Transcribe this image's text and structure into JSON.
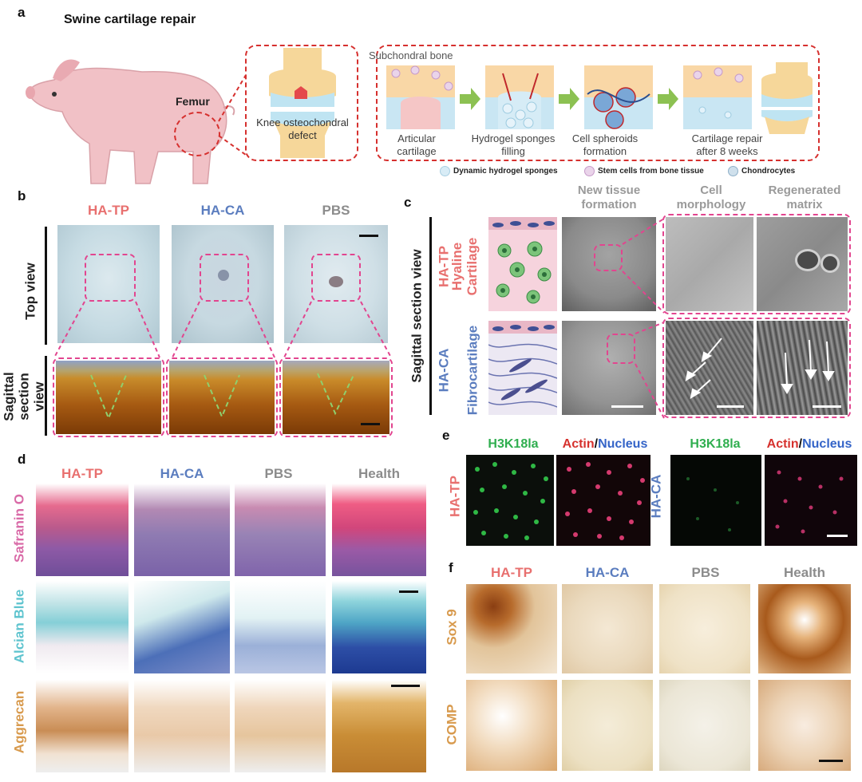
{
  "panel_a": {
    "letter": "a",
    "title": "Swine cartilage repair",
    "femur": "Femur",
    "defect_label": "Knee osteochondral defect",
    "subchondral": "Subchondral bone",
    "steps": [
      "Articular cartilage",
      "Hydrogel sponges filling",
      "Cell spheroids formation",
      "Cartilage repair after 8 weeks"
    ],
    "legend": [
      "Dynamic hydrogel sponges",
      "Stem cells from bone tissue",
      "Chondrocytes"
    ]
  },
  "panel_b": {
    "letter": "b",
    "groups": [
      "HA-TP",
      "HA-CA",
      "PBS"
    ],
    "row_labels": [
      "Top view",
      "Sagittal section view"
    ]
  },
  "panel_c": {
    "letter": "c",
    "side_label": "Sagittal section view",
    "columns": [
      "New tissue formation",
      "Cell morphology",
      "Regenerated matrix"
    ],
    "rows": [
      {
        "group": "HA-TP",
        "tissue": "Hyaline Cartilage"
      },
      {
        "group": "HA-CA",
        "tissue": "Fibrocartilage"
      }
    ]
  },
  "panel_d": {
    "letter": "d",
    "groups": [
      "HA-TP",
      "HA-CA",
      "PBS",
      "Health"
    ],
    "stains": [
      "Safranin O",
      "Alcian Blue",
      "Aggrecan"
    ]
  },
  "panel_e": {
    "letter": "e",
    "marker": "H3K18la",
    "actin": "Actin",
    "slash": "/",
    "nucleus": "Nucleus",
    "groups": [
      "HA-TP",
      "HA-CA"
    ]
  },
  "panel_f": {
    "letter": "f",
    "groups": [
      "HA-TP",
      "HA-CA",
      "PBS",
      "Health"
    ],
    "stains": [
      "Sox 9",
      "COMP"
    ]
  }
}
